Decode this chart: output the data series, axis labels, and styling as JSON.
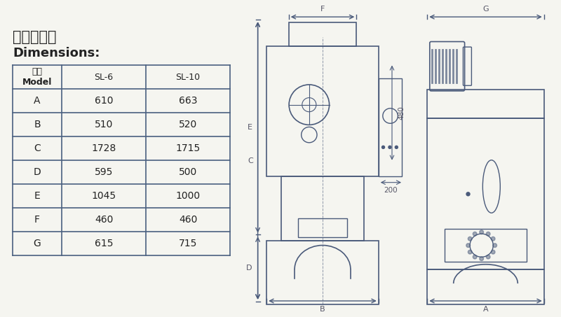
{
  "title_cn": "外形尺寸：",
  "title_en": "Dimensions:",
  "table_headers": [
    "型號\nModel",
    "SL-6",
    "SL-10"
  ],
  "table_rows": [
    [
      "A",
      "610",
      "663"
    ],
    [
      "B",
      "510",
      "520"
    ],
    [
      "C",
      "1728",
      "1715"
    ],
    [
      "D",
      "595",
      "500"
    ],
    [
      "E",
      "1045",
      "1000"
    ],
    [
      "F",
      "460",
      "460"
    ],
    [
      "G",
      "615",
      "715"
    ]
  ],
  "line_color": "#4a5a7a",
  "bg_color": "#f5f5f0",
  "table_border_color": "#4a6080",
  "text_color": "#222222",
  "dim_color": "#555566",
  "note_480": "480",
  "note_200": "200"
}
